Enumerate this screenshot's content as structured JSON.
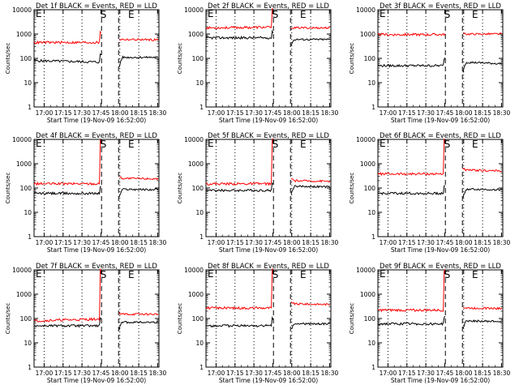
{
  "colors": {
    "events": "#000000",
    "lld": "#ff0000",
    "background": "#ffffff"
  },
  "common": {
    "xlabel": "Start Time (19-Nov-09 16:52:00)",
    "ylabel": "Counts/sec",
    "x_ticks": [
      "17:00",
      "17:15",
      "17:30",
      "17:45",
      "18:00",
      "18:15",
      "18:30"
    ],
    "y_ticks": [
      "1",
      "10",
      "100",
      "1000",
      "10000"
    ],
    "markers": {
      "start": "S",
      "end": "E"
    }
  },
  "chart_data": [
    {
      "type": "line",
      "title": "Det 1f BLACK = Events, RED = LLD",
      "ylabel": "Counts/sec",
      "xlabel": "Start Time (19-Nov-09 16:52:00)",
      "x_ticks": [
        "17:00",
        "17:15",
        "17:30",
        "17:45",
        "18:00",
        "18:15",
        "18:30"
      ],
      "y_scale": "log",
      "ylim": [
        1,
        10000
      ],
      "series": [
        {
          "name": "Events",
          "color": "#000000",
          "values": [
            80,
            70,
            70,
            140,
            30,
            110,
            110
          ]
        },
        {
          "name": "LLD",
          "color": "#ff0000",
          "values": [
            450,
            450,
            450,
            1200,
            600,
            600,
            580
          ]
        }
      ]
    },
    {
      "type": "line",
      "title": "Det 2f BLACK = Events, RED = LLD",
      "ylabel": "Counts/sec",
      "xlabel": "Start Time (19-Nov-09 16:52:00)",
      "x_ticks": [
        "17:00",
        "17:15",
        "17:30",
        "17:45",
        "18:00",
        "18:15",
        "18:30"
      ],
      "y_scale": "log",
      "ylim": [
        1,
        10000
      ],
      "series": [
        {
          "name": "Events",
          "color": "#000000",
          "values": [
            700,
            700,
            700,
            1200,
            300,
            600,
            600
          ]
        },
        {
          "name": "LLD",
          "color": "#ff0000",
          "values": [
            1800,
            1800,
            1900,
            10000,
            1800,
            1800,
            1800
          ]
        }
      ]
    },
    {
      "type": "line",
      "title": "Det 3f BLACK = Events, RED = LLD",
      "ylabel": "Counts/sec",
      "xlabel": "Start Time (19-Nov-09 16:52:00)",
      "x_ticks": [
        "17:00",
        "17:15",
        "17:30",
        "17:45",
        "18:00",
        "18:15",
        "18:30"
      ],
      "y_scale": "log",
      "ylim": [
        1,
        10000
      ],
      "series": [
        {
          "name": "Events",
          "color": "#000000",
          "values": [
            50,
            40,
            50,
            100,
            20,
            70,
            60
          ]
        },
        {
          "name": "LLD",
          "color": "#ff0000",
          "values": [
            950,
            950,
            950,
            1000,
            1000,
            1000,
            1000
          ]
        }
      ]
    },
    {
      "type": "line",
      "title": "Det 4f BLACK = Events, RED = LLD",
      "ylabel": "Counts/sec",
      "xlabel": "Start Time (19-Nov-09 16:52:00)",
      "x_ticks": [
        "17:00",
        "17:15",
        "17:30",
        "17:45",
        "18:00",
        "18:15",
        "18:30"
      ],
      "y_scale": "log",
      "ylim": [
        1,
        10000
      ],
      "series": [
        {
          "name": "Events",
          "color": "#000000",
          "values": [
            60,
            55,
            60,
            120,
            30,
            90,
            85
          ]
        },
        {
          "name": "LLD",
          "color": "#ff0000",
          "values": [
            150,
            140,
            150,
            10000,
            300,
            250,
            240
          ]
        }
      ]
    },
    {
      "type": "line",
      "title": "Det 5f BLACK = Events, RED = LLD",
      "ylabel": "Counts/sec",
      "xlabel": "Start Time (19-Nov-09 16:52:00)",
      "x_ticks": [
        "17:00",
        "17:15",
        "17:30",
        "17:45",
        "18:00",
        "18:15",
        "18:30"
      ],
      "y_scale": "log",
      "ylim": [
        1,
        10000
      ],
      "series": [
        {
          "name": "Events",
          "color": "#000000",
          "values": [
            80,
            75,
            80,
            160,
            40,
            120,
            110
          ]
        },
        {
          "name": "LLD",
          "color": "#ff0000",
          "values": [
            150,
            140,
            150,
            10000,
            250,
            200,
            190
          ]
        }
      ]
    },
    {
      "type": "line",
      "title": "Det 6f BLACK = Events, RED = LLD",
      "ylabel": "Counts/sec",
      "xlabel": "Start Time (19-Nov-09 16:52:00)",
      "x_ticks": [
        "17:00",
        "17:15",
        "17:30",
        "17:45",
        "18:00",
        "18:15",
        "18:30"
      ],
      "y_scale": "log",
      "ylim": [
        1,
        10000
      ],
      "series": [
        {
          "name": "Events",
          "color": "#000000",
          "values": [
            60,
            55,
            60,
            120,
            30,
            90,
            85
          ]
        },
        {
          "name": "LLD",
          "color": "#ff0000",
          "values": [
            380,
            360,
            380,
            10000,
            650,
            550,
            500
          ]
        }
      ]
    },
    {
      "type": "line",
      "title": "Det 7f BLACK = Events, RED = LLD",
      "ylabel": "Counts/sec",
      "xlabel": "Start Time (19-Nov-09 16:52:00)",
      "x_ticks": [
        "17:00",
        "17:15",
        "17:30",
        "17:45",
        "18:00",
        "18:15",
        "18:30"
      ],
      "y_scale": "log",
      "ylim": [
        1,
        10000
      ],
      "series": [
        {
          "name": "Events",
          "color": "#000000",
          "values": [
            50,
            45,
            50,
            100,
            30,
            70,
            70
          ]
        },
        {
          "name": "LLD",
          "color": "#ff0000",
          "values": [
            80,
            90,
            95,
            10000,
            170,
            150,
            150
          ]
        }
      ]
    },
    {
      "type": "line",
      "title": "Det 8f BLACK = Events, RED = LLD",
      "ylabel": "Counts/sec",
      "xlabel": "Start Time (19-Nov-09 16:52:00)",
      "x_ticks": [
        "17:00",
        "17:15",
        "17:30",
        "17:45",
        "18:00",
        "18:15",
        "18:30"
      ],
      "y_scale": "log",
      "ylim": [
        1,
        10000
      ],
      "series": [
        {
          "name": "Events",
          "color": "#000000",
          "values": [
            50,
            45,
            50,
            100,
            30,
            60,
            60
          ]
        },
        {
          "name": "LLD",
          "color": "#ff0000",
          "values": [
            270,
            260,
            270,
            10000,
            500,
            400,
            380
          ]
        }
      ]
    },
    {
      "type": "line",
      "title": "Det 9f BLACK = Events, RED = LLD",
      "ylabel": "Counts/sec",
      "xlabel": "Start Time (19-Nov-09 16:52:00)",
      "x_ticks": [
        "17:00",
        "17:15",
        "17:30",
        "17:45",
        "18:00",
        "18:15",
        "18:30"
      ],
      "y_scale": "log",
      "ylim": [
        1,
        10000
      ],
      "series": [
        {
          "name": "Events",
          "color": "#000000",
          "values": [
            60,
            55,
            60,
            120,
            30,
            80,
            75
          ]
        },
        {
          "name": "LLD",
          "color": "#ff0000",
          "values": [
            220,
            200,
            220,
            10000,
            300,
            270,
            260
          ]
        }
      ]
    }
  ]
}
